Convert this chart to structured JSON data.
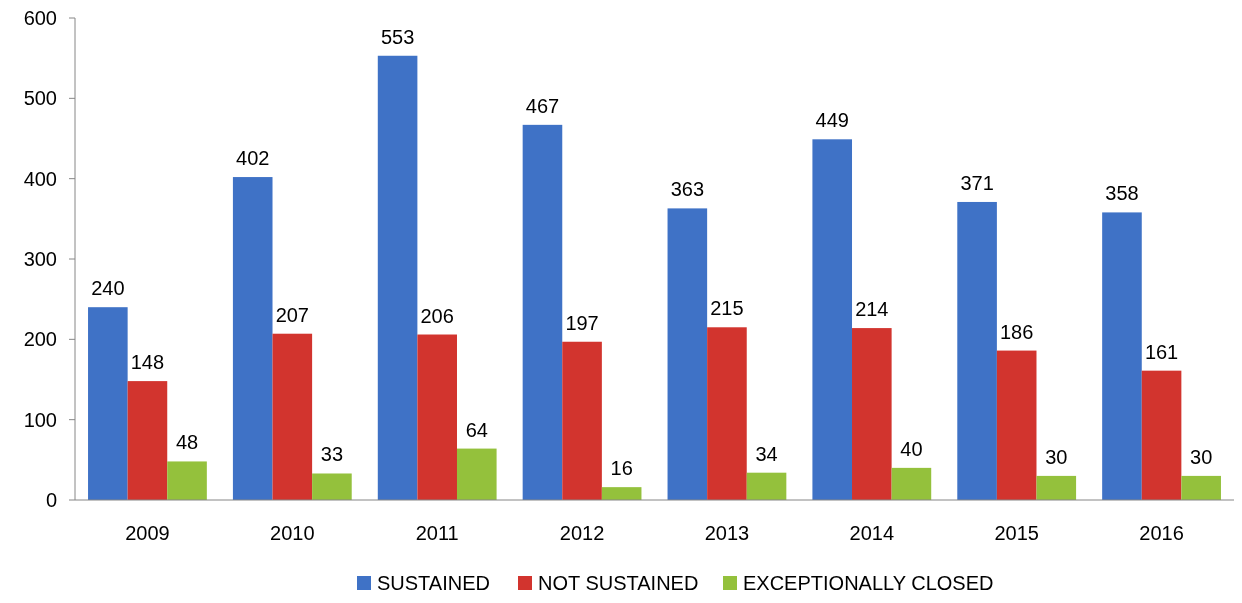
{
  "chart_data": {
    "type": "bar",
    "categories": [
      "2009",
      "2010",
      "2011",
      "2012",
      "2013",
      "2014",
      "2015",
      "2016"
    ],
    "series": [
      {
        "name": "SUSTAINED",
        "color": "#3f72c6",
        "values": [
          240,
          402,
          553,
          467,
          363,
          449,
          371,
          358
        ]
      },
      {
        "name": "NOT SUSTAINED",
        "color": "#d2342e",
        "values": [
          148,
          207,
          206,
          197,
          215,
          214,
          186,
          161
        ]
      },
      {
        "name": "EXCEPTIONALLY CLOSED",
        "color": "#94c13c",
        "values": [
          48,
          33,
          64,
          16,
          34,
          40,
          30,
          30
        ]
      }
    ],
    "ylim": [
      0,
      600
    ],
    "yticks": [
      0,
      100,
      200,
      300,
      400,
      500,
      600
    ],
    "data_labels": true,
    "grid": false,
    "legend": "bottom"
  }
}
